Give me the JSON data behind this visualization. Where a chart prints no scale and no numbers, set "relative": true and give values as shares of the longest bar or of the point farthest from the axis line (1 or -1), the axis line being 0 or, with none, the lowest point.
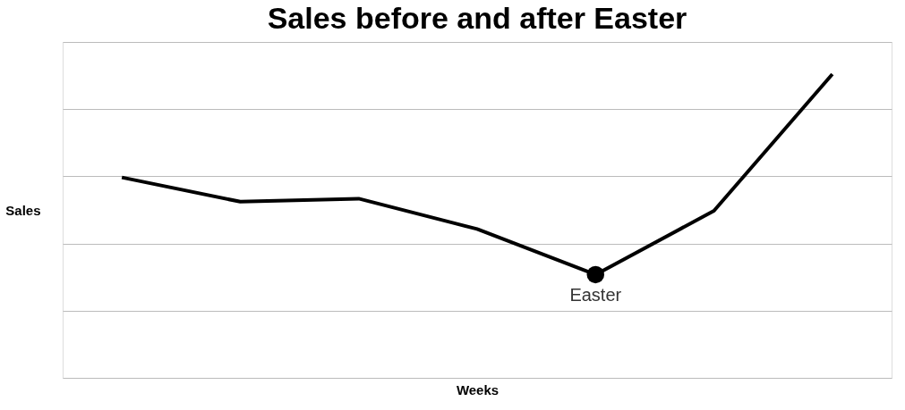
{
  "chart_data": {
    "type": "line",
    "title": "Sales before and after Easter",
    "xlabel": "Weeks",
    "ylabel": "Sales",
    "categories": [
      null,
      null,
      null,
      null,
      null,
      null,
      null
    ],
    "series": [
      {
        "color": "#000000",
        "values": [
          0.66,
          0.58,
          0.59,
          0.49,
          0.34,
          0.55,
          1.0
        ]
      }
    ],
    "relative": true,
    "grid": "y",
    "marker": "none",
    "line_style": "solid",
    "annotations": [
      {
        "text": "Easter",
        "y": 0.34
      }
    ]
  }
}
